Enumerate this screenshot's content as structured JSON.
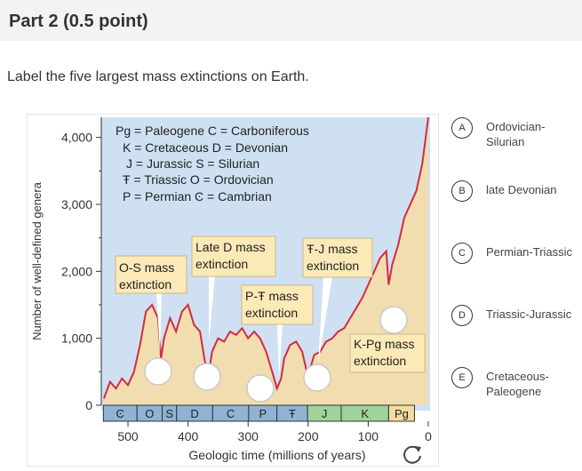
{
  "header": {
    "title": "Part 2   (0.5 point)"
  },
  "prompt": "Label the five largest mass extinctions on Earth.",
  "figure": {
    "ylabel": "Number of well-defined genera",
    "xlabel": "Geologic time (millions of years)",
    "yticks": [
      "4,000",
      "3,000",
      "2,000",
      "1,000",
      "0"
    ],
    "xticks": [
      "500",
      "400",
      "300",
      "200",
      "100",
      "0"
    ],
    "legend": [
      "Pg = Paleogene  C = Carboniferous",
      "K = Cretaceous D = Devonian",
      "J = Jurassic      S = Silurian",
      "Ŧ = Triassic       O = Ordovician",
      "P = Permian      Ͼ = Cambrian"
    ],
    "callouts": {
      "os": [
        "O-S mass",
        "extinction"
      ],
      "lated": [
        "Late D mass",
        "extinction"
      ],
      "ptr": [
        "P-Ŧ mass",
        "extinction"
      ],
      "trj": [
        "Ŧ-J mass",
        "extinction"
      ],
      "kpg": [
        "K-Pg mass",
        "extinction"
      ]
    },
    "periods": [
      "Ͼ",
      "O",
      "S",
      "D",
      "C",
      "P",
      "Ŧ",
      "J",
      "K",
      "Pg"
    ],
    "colors": {
      "sky": "#cfe0f2",
      "area": "#f2ddb0",
      "line": "#d32b3f",
      "callout": "#fbe9b7"
    }
  },
  "options": [
    {
      "letter": "A",
      "label": "Ordovician-Silurian"
    },
    {
      "letter": "B",
      "label": "late Devonian"
    },
    {
      "letter": "C",
      "label": "Permian-Triassic"
    },
    {
      "letter": "D",
      "label": "Triassic-Jurassic"
    },
    {
      "letter": "E",
      "label": "Cretaceous-Paleogene"
    }
  ],
  "chart_data": {
    "type": "area",
    "xlabel": "Geologic time (millions of years)",
    "ylabel": "Number of well-defined genera",
    "xlim": [
      540,
      0
    ],
    "ylim": [
      0,
      4300
    ],
    "x": [
      540,
      530,
      520,
      510,
      500,
      490,
      480,
      470,
      460,
      450,
      445,
      440,
      430,
      420,
      410,
      400,
      390,
      380,
      372,
      365,
      360,
      350,
      340,
      330,
      320,
      310,
      300,
      290,
      280,
      270,
      260,
      252,
      245,
      240,
      230,
      220,
      210,
      201,
      195,
      190,
      180,
      170,
      160,
      150,
      140,
      130,
      120,
      110,
      100,
      90,
      80,
      70,
      66,
      60,
      50,
      40,
      30,
      20,
      10,
      0
    ],
    "series": [
      {
        "values": [
          100,
          350,
          250,
          400,
          300,
          500,
          900,
          1400,
          1500,
          1300,
          700,
          1000,
          1300,
          1100,
          1400,
          1500,
          1200,
          1100,
          650,
          500,
          800,
          1000,
          950,
          1100,
          1050,
          1150,
          1000,
          1100,
          1000,
          800,
          500,
          250,
          400,
          700,
          900,
          950,
          800,
          450,
          600,
          750,
          800,
          950,
          1000,
          1100,
          1150,
          1300,
          1450,
          1600,
          1800,
          2000,
          2200,
          2300,
          1800,
          2100,
          2400,
          2800,
          3000,
          3200,
          3600,
          4300
        ]
      }
    ]
  }
}
